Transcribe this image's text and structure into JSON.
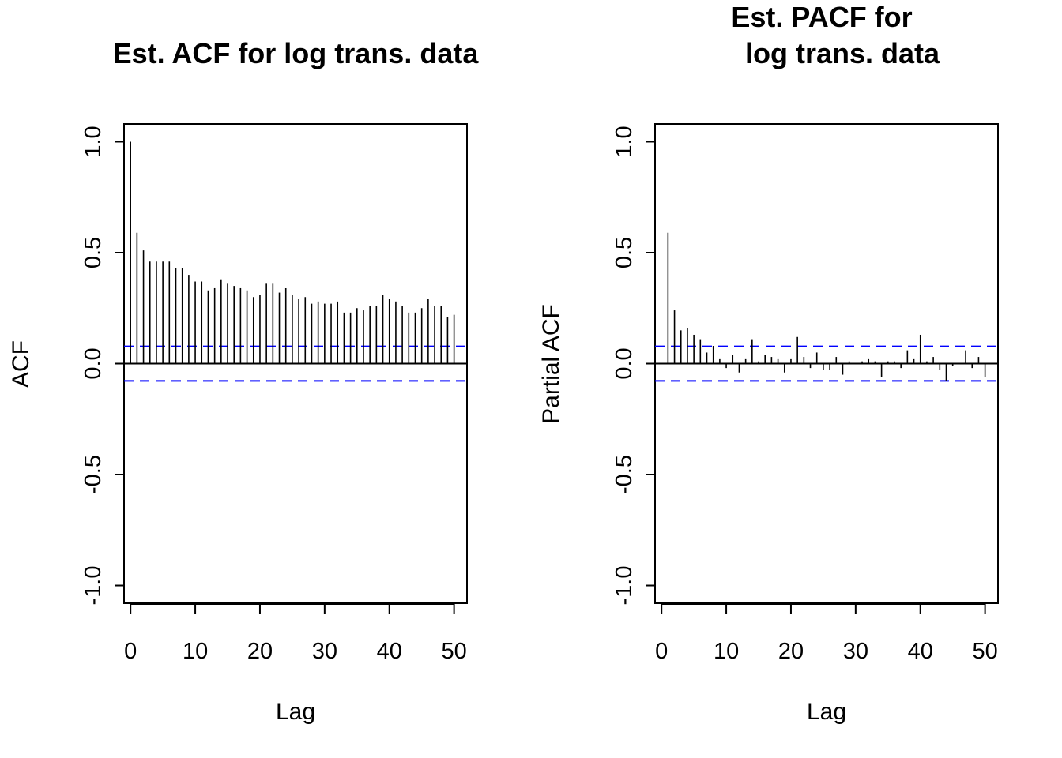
{
  "chart_data": [
    {
      "type": "bar",
      "title": "Est. ACF for log trans. data",
      "xlabel": "Lag",
      "ylabel": "ACF",
      "xlim": [
        -1,
        52
      ],
      "ylim": [
        -1.08,
        1.08
      ],
      "xticks": [
        "0",
        "10",
        "20",
        "30",
        "40",
        "50"
      ],
      "yticks": [
        "-1.0",
        "-0.5",
        "0.0",
        "0.5",
        "1.0"
      ],
      "confidence_bound": 0.078,
      "confidence_color": "#0000ff",
      "lags": [
        0,
        1,
        2,
        3,
        4,
        5,
        6,
        7,
        8,
        9,
        10,
        11,
        12,
        13,
        14,
        15,
        16,
        17,
        18,
        19,
        20,
        21,
        22,
        23,
        24,
        25,
        26,
        27,
        28,
        29,
        30,
        31,
        32,
        33,
        34,
        35,
        36,
        37,
        38,
        39,
        40,
        41,
        42,
        43,
        44,
        45,
        46,
        47,
        48,
        49,
        50
      ],
      "values": [
        1.0,
        0.59,
        0.51,
        0.46,
        0.46,
        0.46,
        0.46,
        0.43,
        0.43,
        0.4,
        0.37,
        0.37,
        0.33,
        0.34,
        0.38,
        0.36,
        0.35,
        0.34,
        0.33,
        0.3,
        0.31,
        0.36,
        0.36,
        0.32,
        0.34,
        0.31,
        0.29,
        0.3,
        0.27,
        0.28,
        0.27,
        0.27,
        0.28,
        0.23,
        0.23,
        0.25,
        0.24,
        0.26,
        0.26,
        0.31,
        0.29,
        0.28,
        0.26,
        0.23,
        0.23,
        0.25,
        0.29,
        0.26,
        0.26,
        0.21,
        0.22
      ]
    },
    {
      "type": "bar",
      "title": "Est. PACF for\nlog trans. data",
      "xlabel": "Lag",
      "ylabel": "Partial ACF",
      "xlim": [
        -1,
        52
      ],
      "ylim": [
        -1.08,
        1.08
      ],
      "xticks": [
        "0",
        "10",
        "20",
        "30",
        "40",
        "50"
      ],
      "yticks": [
        "-1.0",
        "-0.5",
        "0.0",
        "0.5",
        "1.0"
      ],
      "confidence_bound": 0.078,
      "confidence_color": "#0000ff",
      "lags": [
        1,
        2,
        3,
        4,
        5,
        6,
        7,
        8,
        9,
        10,
        11,
        12,
        13,
        14,
        15,
        16,
        17,
        18,
        19,
        20,
        21,
        22,
        23,
        24,
        25,
        26,
        27,
        28,
        29,
        30,
        31,
        32,
        33,
        34,
        35,
        36,
        37,
        38,
        39,
        40,
        41,
        42,
        43,
        44,
        45,
        46,
        47,
        48,
        49,
        50
      ],
      "values": [
        0.59,
        0.24,
        0.15,
        0.16,
        0.13,
        0.11,
        0.05,
        0.08,
        0.02,
        -0.02,
        0.04,
        -0.04,
        0.02,
        0.11,
        0.01,
        0.04,
        0.03,
        0.02,
        -0.04,
        0.02,
        0.12,
        0.03,
        -0.02,
        0.05,
        -0.03,
        -0.03,
        0.03,
        -0.05,
        0.01,
        0.0,
        0.01,
        0.02,
        0.01,
        -0.06,
        0.01,
        0.01,
        -0.02,
        0.06,
        0.02,
        0.13,
        0.01,
        0.03,
        -0.03,
        -0.08,
        -0.01,
        0.0,
        0.06,
        -0.02,
        0.03,
        -0.06
      ]
    }
  ]
}
